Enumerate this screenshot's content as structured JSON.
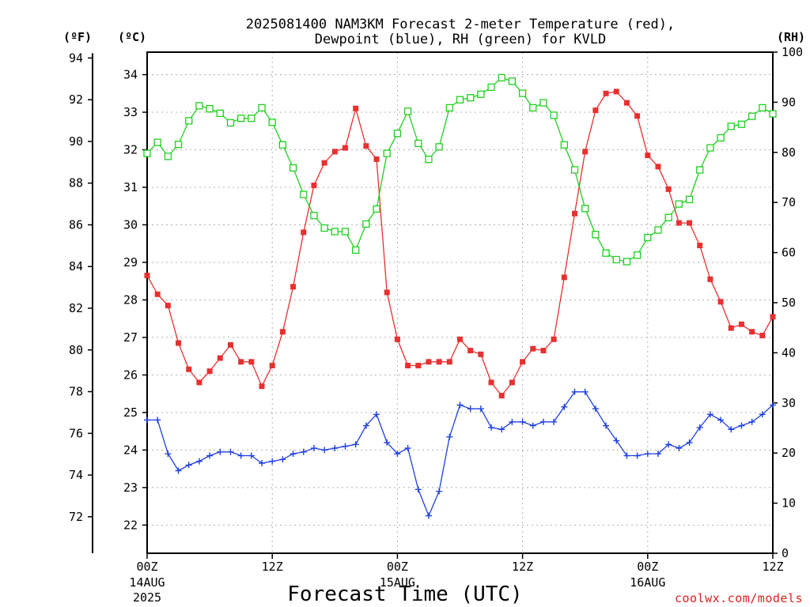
{
  "chart_data": {
    "type": "line",
    "title_line1": "2025081400 NAM3KM Forecast 2-meter Temperature (red),",
    "title_line2": "Dewpoint (blue), RH (green) for KVLD",
    "xlabel": "Forecast Time (UTC)",
    "credit": "coolwx.com/models",
    "units": {
      "fahrenheit": "(ºF)",
      "celsius": "(ºC)",
      "rh": "(RH)"
    },
    "x_ticks": [
      {
        "hour": 0,
        "label": "00Z",
        "date": "14AUG",
        "year": "2025"
      },
      {
        "hour": 12,
        "label": "12Z",
        "date": "",
        "year": ""
      },
      {
        "hour": 24,
        "label": "00Z",
        "date": "15AUG",
        "year": ""
      },
      {
        "hour": 36,
        "label": "12Z",
        "date": "",
        "year": ""
      },
      {
        "hour": 48,
        "label": "00Z",
        "date": "16AUG",
        "year": ""
      },
      {
        "hour": 60,
        "label": "12Z",
        "date": "",
        "year": ""
      }
    ],
    "xlim": [
      0,
      60
    ],
    "ylim_c": [
      21.25,
      34.6
    ],
    "ylim_rh": [
      0,
      100
    ],
    "celsius_ticks": [
      "22",
      "23",
      "24",
      "25",
      "26",
      "27",
      "28",
      "29",
      "30",
      "31",
      "32",
      "33",
      "34"
    ],
    "fahrenheit_ticks": [
      "72",
      "74",
      "76",
      "78",
      "80",
      "82",
      "84",
      "86",
      "88",
      "90",
      "92",
      "94"
    ],
    "rh_ticks": [
      "0",
      "10",
      "20",
      "30",
      "40",
      "50",
      "60",
      "70",
      "80",
      "90",
      "100"
    ],
    "grid": true,
    "series": [
      {
        "name": "Temperature",
        "unit": "C",
        "color": "#e83030",
        "marker": "filled-square",
        "values": [
          28.65,
          28.15,
          27.85,
          26.85,
          26.15,
          25.8,
          26.1,
          26.45,
          26.8,
          26.35,
          26.35,
          25.7,
          26.25,
          27.15,
          28.35,
          29.8,
          31.05,
          31.65,
          31.95,
          32.05,
          33.1,
          32.1,
          31.75,
          28.2,
          26.95,
          26.25,
          26.25,
          26.35,
          26.35,
          26.35,
          26.95,
          26.65,
          26.55,
          25.8,
          25.45,
          25.8,
          26.35,
          26.7,
          26.65,
          26.95,
          28.6,
          30.3,
          31.95,
          33.05,
          33.5,
          33.55,
          33.25,
          32.9,
          31.85,
          31.55,
          30.95,
          30.05,
          30.05,
          29.45,
          28.55,
          27.95,
          27.25,
          27.35,
          27.15,
          27.05,
          27.55
        ]
      },
      {
        "name": "Dewpoint",
        "unit": "C",
        "color": "#2040e0",
        "marker": "plus",
        "values": [
          24.8,
          24.8,
          23.9,
          23.45,
          23.6,
          23.7,
          23.85,
          23.95,
          23.95,
          23.85,
          23.85,
          23.65,
          23.7,
          23.75,
          23.9,
          23.95,
          24.05,
          24.0,
          24.05,
          24.1,
          24.15,
          24.65,
          24.95,
          24.2,
          23.9,
          24.05,
          22.95,
          22.25,
          22.9,
          24.35,
          25.2,
          25.1,
          25.1,
          24.6,
          24.55,
          24.75,
          24.75,
          24.65,
          24.75,
          24.75,
          25.15,
          25.55,
          25.55,
          25.1,
          24.65,
          24.25,
          23.85,
          23.85,
          23.9,
          23.9,
          24.15,
          24.05,
          24.2,
          24.6,
          24.95,
          24.8,
          24.55,
          24.65,
          24.75,
          24.95,
          25.2
        ]
      },
      {
        "name": "RH",
        "unit": "%",
        "color": "#20d020",
        "marker": "open-square",
        "values": [
          79.8,
          82.0,
          79.2,
          81.6,
          86.3,
          89.3,
          88.7,
          87.8,
          85.9,
          86.8,
          86.8,
          88.9,
          86.0,
          81.5,
          76.9,
          71.6,
          67.4,
          64.9,
          64.2,
          64.2,
          60.5,
          65.7,
          68.7,
          79.8,
          83.8,
          88.2,
          81.8,
          78.6,
          81.1,
          88.9,
          90.5,
          90.9,
          91.6,
          93.0,
          94.9,
          94.2,
          91.8,
          88.9,
          89.9,
          87.4,
          81.5,
          76.5,
          68.8,
          63.6,
          59.9,
          58.6,
          58.2,
          59.5,
          63.0,
          64.5,
          67.0,
          69.7,
          70.6,
          76.5,
          80.9,
          82.9,
          85.2,
          85.6,
          87.2,
          88.9,
          87.7
        ]
      }
    ]
  }
}
